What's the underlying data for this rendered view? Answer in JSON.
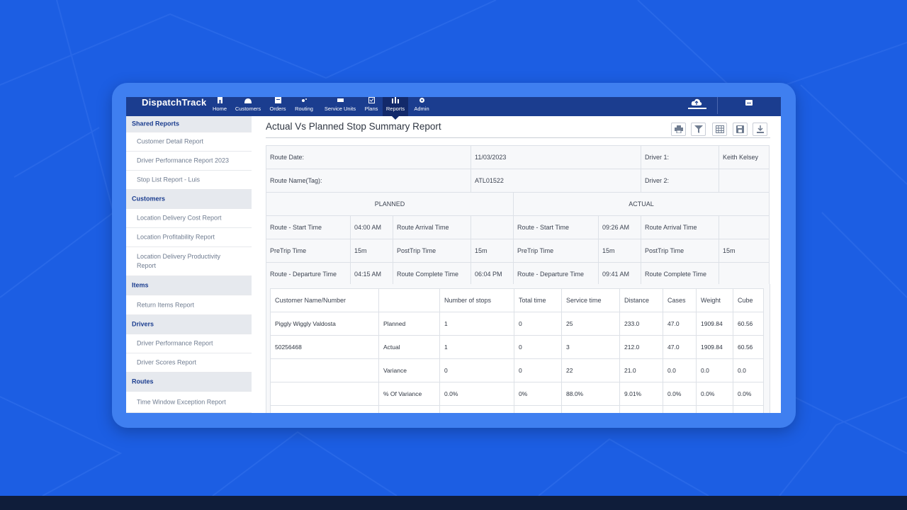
{
  "app": {
    "logo": "DispatchTrack",
    "nav": [
      {
        "label": "Home",
        "icon": "home-icon"
      },
      {
        "label": "Customers",
        "icon": "customers-icon"
      },
      {
        "label": "Orders",
        "icon": "orders-icon"
      },
      {
        "label": "Routing",
        "icon": "routing-icon"
      },
      {
        "label": "Service Units",
        "icon": "service-units-icon"
      },
      {
        "label": "Plans",
        "icon": "plans-icon"
      },
      {
        "label": "Reports",
        "icon": "reports-icon",
        "active": true
      },
      {
        "label": "Admin",
        "icon": "admin-icon"
      }
    ],
    "colors": {
      "nav_bg": "#1b3d8f",
      "page_bg": "#1c5ee3",
      "frame": "#3f7ff0"
    }
  },
  "sidebar": {
    "sections": [
      {
        "title": "Shared Reports",
        "items": [
          "Customer Detail Report",
          "Driver Performance Report 2023",
          "Stop List Report - Luis"
        ]
      },
      {
        "title": "Customers",
        "items": [
          "Location Delivery Cost Report",
          "Location Profitability Report",
          "Location Delivery Productivity Report"
        ]
      },
      {
        "title": "Items",
        "items": [
          "Return Items Report"
        ]
      },
      {
        "title": "Drivers",
        "items": [
          "Driver Performance Report",
          "Driver Scores Report"
        ]
      },
      {
        "title": "Routes",
        "items": [
          "Time Window Exception Report"
        ]
      }
    ]
  },
  "report": {
    "title": "Actual Vs Planned Stop Summary Report",
    "toolbar": [
      "print-icon",
      "filter-icon",
      "grid-icon",
      "save-icon",
      "download-icon"
    ],
    "info": {
      "route_date_label": "Route Date:",
      "route_date": "11/03/2023",
      "driver1_label": "Driver 1:",
      "driver1": "Keith Kelsey",
      "route_name_label": "Route Name(Tag):",
      "route_name": "ATL01522",
      "driver2_label": "Driver 2:",
      "driver2": ""
    },
    "planned_header": "PLANNED",
    "actual_header": "ACTUAL",
    "planned": {
      "start_label": "Route - Start Time",
      "start": "04:00 AM",
      "arrival_label": "Route Arrival Time",
      "arrival": "",
      "pretrip_label": "PreTrip Time",
      "pretrip": "15m",
      "posttrip_label": "PostTrip Time",
      "posttrip": "15m",
      "departure_label": "Route - Departure Time",
      "departure": "04:15 AM",
      "complete_label": "Route Complete Time",
      "complete": "06:04 PM"
    },
    "actual": {
      "start_label": "Route - Start Time",
      "start": "09:26 AM",
      "arrival_label": "Route Arrival Time",
      "arrival": "",
      "pretrip_label": "PreTrip Time",
      "pretrip": "15m",
      "posttrip_label": "PostTrip Time",
      "posttrip": "15m",
      "departure_label": "Route - Departure Time",
      "departure": "09:41 AM",
      "complete_label": "Route Complete Time",
      "complete": ""
    },
    "table": {
      "headers": [
        "Customer Name/Number",
        "",
        "Number of stops",
        "Total time",
        "Service time",
        "Distance",
        "Cases",
        "Weight",
        "Cube"
      ],
      "rows": [
        [
          "Piggly Wiggly Valdosta",
          "Planned",
          "1",
          "0",
          "25",
          "233.0",
          "47.0",
          "1909.84",
          "60.56"
        ],
        [
          "50256468",
          "Actual",
          "1",
          "0",
          "3",
          "212.0",
          "47.0",
          "1909.84",
          "60.56"
        ],
        [
          "",
          "Variance",
          "0",
          "0",
          "22",
          "21.0",
          "0.0",
          "0.0",
          "0.0"
        ],
        [
          "",
          "% Of Variance",
          "0.0%",
          "0%",
          "88.0%",
          "9.01%",
          "0.0%",
          "0.0%",
          "0.0%"
        ],
        [
          "",
          "",
          "",
          "",
          "",
          "",
          "",
          "",
          ""
        ]
      ]
    }
  }
}
